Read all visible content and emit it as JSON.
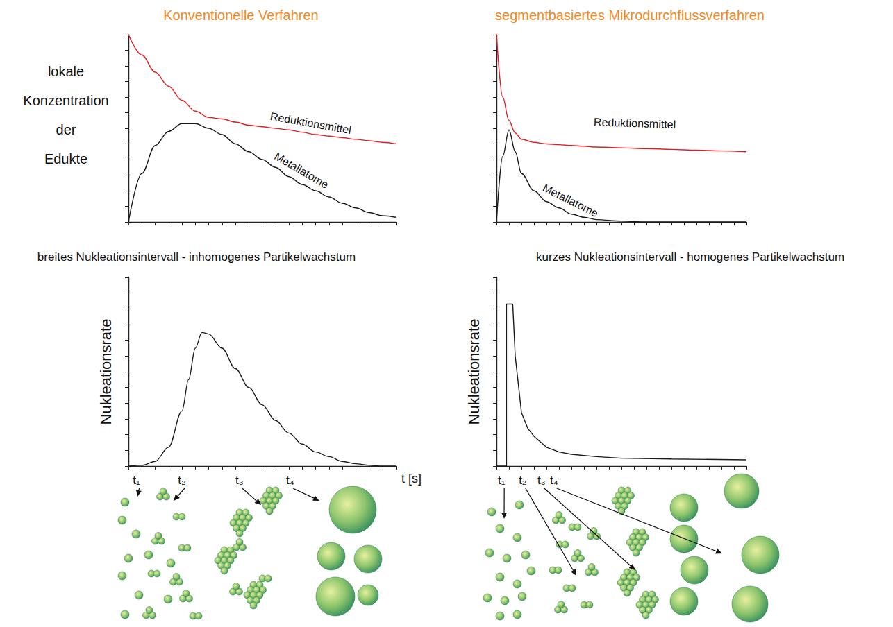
{
  "chart_data": [
    {
      "type": "line",
      "title": "Konventionelle Verfahren",
      "ylabel": "lokale Konzentration der Edukte",
      "x": [
        0,
        1,
        2,
        3,
        4,
        5,
        6,
        7,
        8,
        9,
        10,
        11,
        12,
        13,
        14,
        15,
        16,
        17,
        18,
        19,
        20
      ],
      "series": [
        {
          "name": "Reduktionsmittel",
          "color": "#e31e24",
          "values": [
            12,
            10.7,
            9.6,
            8.7,
            7.8,
            7.1,
            6.7,
            6.6,
            6.4,
            6.2,
            6.1,
            6.0,
            5.9,
            5.75,
            5.6,
            5.5,
            5.4,
            5.3,
            5.2,
            5.1,
            5.0
          ]
        },
        {
          "name": "Metallatome",
          "color": "#1a1a1a",
          "values": [
            0,
            3.1,
            4.9,
            5.8,
            6.3,
            6.3,
            6.0,
            5.6,
            5.0,
            4.5,
            4.0,
            3.5,
            2.9,
            2.4,
            2.0,
            1.6,
            1.2,
            0.9,
            0.6,
            0.4,
            0.3
          ]
        }
      ],
      "xlim": [
        0,
        20
      ],
      "xticks": [
        0,
        1,
        2,
        3,
        4,
        5,
        6,
        7,
        8,
        9,
        10,
        11,
        12,
        13,
        14,
        15,
        16,
        17,
        18,
        19,
        20
      ],
      "ylim": [
        0,
        12
      ],
      "yticks": [
        0,
        1,
        2,
        3,
        4,
        5,
        6,
        7,
        8,
        9,
        10,
        11,
        12
      ],
      "tick_labels": false,
      "grid": false
    },
    {
      "type": "line",
      "title": "segmentbasiertes Mikrodurchflussverfahren",
      "x": [
        0,
        0.5,
        1,
        1.5,
        2,
        3,
        4,
        5,
        6,
        7,
        8,
        10,
        12,
        14,
        16,
        18,
        20
      ],
      "series": [
        {
          "name": "Reduktionsmittel",
          "color": "#e31e24",
          "values": [
            12,
            8,
            6.5,
            5.7,
            5.3,
            5.1,
            5.0,
            4.95,
            4.9,
            4.85,
            4.8,
            4.75,
            4.7,
            4.65,
            4.6,
            4.55,
            4.5
          ]
        },
        {
          "name": "Metallatome",
          "color": "#1a1a1a",
          "values": [
            0,
            4.2,
            5.9,
            4.5,
            3.1,
            2.0,
            1.3,
            0.9,
            0.5,
            0.3,
            0.15,
            0.05,
            0,
            0,
            0,
            0,
            0
          ]
        }
      ],
      "xlim": [
        0,
        20
      ],
      "xticks": [
        0,
        1,
        2,
        3,
        4,
        5,
        6,
        7,
        8,
        9,
        10,
        11,
        12,
        13,
        14,
        15,
        16,
        17,
        18,
        19,
        20
      ],
      "ylim": [
        0,
        12
      ],
      "yticks": [
        0,
        1,
        2,
        3,
        4,
        5,
        6,
        7,
        8,
        9,
        10,
        11,
        12
      ],
      "tick_labels": false,
      "grid": false
    },
    {
      "type": "line",
      "title": "breites Nukleationsintervall - inhomogenes Partikelwachstum",
      "ylabel": "Nukleationsrate",
      "xlabel": "t [s]",
      "x": [
        0,
        1,
        2,
        3,
        4,
        4.5,
        5,
        5.5,
        6,
        7,
        8,
        9,
        10,
        11,
        12,
        13,
        14,
        15,
        16,
        17,
        18,
        19,
        20
      ],
      "values": [
        0,
        0.05,
        0.3,
        1.2,
        3.5,
        5.5,
        7.5,
        8.5,
        8.4,
        7.5,
        6.2,
        5.0,
        3.9,
        2.9,
        2.1,
        1.4,
        0.9,
        0.6,
        0.3,
        0.15,
        0.05,
        0,
        0
      ],
      "color": "#1a1a1a",
      "annotations": [
        {
          "text": "t₁",
          "x": 0.6
        },
        {
          "text": "t₂",
          "x": 4.0
        },
        {
          "text": "t₃",
          "x": 8.3
        },
        {
          "text": "t₄",
          "x": 12.1
        }
      ],
      "xlim": [
        0,
        20
      ],
      "xticks": [
        0,
        1,
        2,
        3,
        4,
        5,
        6,
        7,
        8,
        9,
        10,
        11,
        12,
        13,
        14,
        15,
        16,
        17,
        18,
        19,
        20
      ],
      "ylim": [
        0,
        12
      ],
      "yticks": [
        0,
        1,
        2,
        3,
        4,
        5,
        6,
        7,
        8,
        9,
        10,
        11,
        12
      ],
      "tick_labels": false,
      "grid": false
    },
    {
      "type": "line",
      "title": "kurzes Nukleationsintervall - homogenes Partikelwachstum",
      "ylabel": "Nukleationsrate",
      "x": [
        0,
        0.8,
        0.8,
        1.3,
        1.5,
        2,
        2.5,
        3,
        4,
        5,
        6,
        8,
        10,
        14,
        20
      ],
      "values": [
        0,
        0,
        10.3,
        10.3,
        7.0,
        3.4,
        2.4,
        1.9,
        1.2,
        0.9,
        0.75,
        0.6,
        0.5,
        0.45,
        0.4
      ],
      "color": "#1a1a1a",
      "annotations": [
        {
          "text": "t₁",
          "x": 0.4
        },
        {
          "text": "t₂",
          "x": 2.1
        },
        {
          "text": "t₃",
          "x": 3.6
        },
        {
          "text": "t₄",
          "x": 4.6
        }
      ],
      "xlim": [
        0,
        20
      ],
      "xticks": [
        0,
        1,
        2,
        3,
        4,
        5,
        6,
        7,
        8,
        9,
        10,
        11,
        12,
        13,
        14,
        15,
        16,
        17,
        18,
        19,
        20
      ],
      "ylim": [
        0,
        12
      ],
      "yticks": [
        0,
        1,
        2,
        3,
        4,
        5,
        6,
        7,
        8,
        9,
        10,
        11,
        12
      ],
      "tick_labels": false,
      "grid": false
    }
  ]
}
